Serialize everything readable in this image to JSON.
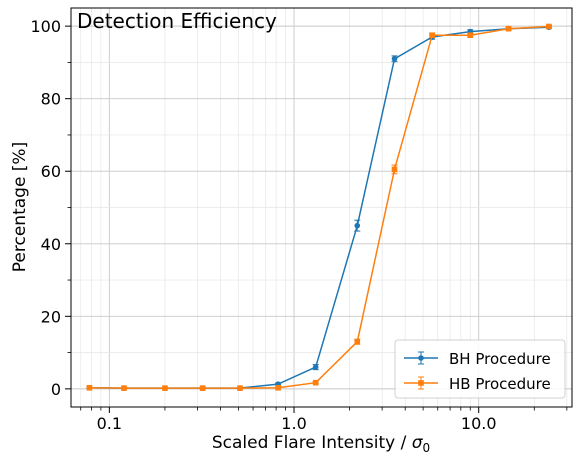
{
  "chart_data": {
    "type": "line",
    "title": "Detection Efficiency",
    "xlabel": "Scaled Flare Intensity / ",
    "xlabel_symbol": "σ",
    "xlabel_subscript": "0",
    "ylabel": "Percentage [%]",
    "x_scale": "log",
    "xlim": [
      0.062,
      32
    ],
    "ylim": [
      -5,
      105
    ],
    "x_ticks": [
      {
        "value": 0.1,
        "label": "0.1"
      },
      {
        "value": 1.0,
        "label": "1.0"
      },
      {
        "value": 10.0,
        "label": "10.0"
      }
    ],
    "y_ticks": [
      {
        "value": 0,
        "label": "0"
      },
      {
        "value": 20,
        "label": "20"
      },
      {
        "value": 40,
        "label": "40"
      },
      {
        "value": 60,
        "label": "60"
      },
      {
        "value": 80,
        "label": "80"
      },
      {
        "value": 100,
        "label": "100"
      }
    ],
    "grid": true,
    "legend_position": "lower-right",
    "series": [
      {
        "name": "BH Procedure",
        "color": "#1f77b4",
        "marker": "circle",
        "x": [
          0.078,
          0.12,
          0.2,
          0.32,
          0.51,
          0.82,
          1.31,
          2.2,
          3.5,
          5.6,
          9.0,
          14.5,
          24.0
        ],
        "values": [
          0.3,
          0.2,
          0.2,
          0.2,
          0.2,
          1.3,
          6.0,
          45.0,
          91.0,
          97.0,
          98.5,
          99.3,
          99.7
        ],
        "errors": [
          0.2,
          0.2,
          0.2,
          0.2,
          0.2,
          0.3,
          0.7,
          1.5,
          0.8,
          0.6,
          0.5,
          0.3,
          0.3
        ]
      },
      {
        "name": "HB Procedure",
        "color": "#ff7f0e",
        "marker": "square",
        "x": [
          0.078,
          0.12,
          0.2,
          0.32,
          0.51,
          0.82,
          1.31,
          2.2,
          3.5,
          5.6,
          9.0,
          14.5,
          24.0
        ],
        "values": [
          0.3,
          0.2,
          0.2,
          0.2,
          0.2,
          0.3,
          1.7,
          13.0,
          60.5,
          97.5,
          97.5,
          99.3,
          99.9
        ],
        "errors": [
          0.2,
          0.2,
          0.2,
          0.2,
          0.2,
          0.2,
          0.3,
          0.7,
          1.2,
          0.6,
          0.6,
          0.3,
          0.3
        ]
      }
    ]
  }
}
